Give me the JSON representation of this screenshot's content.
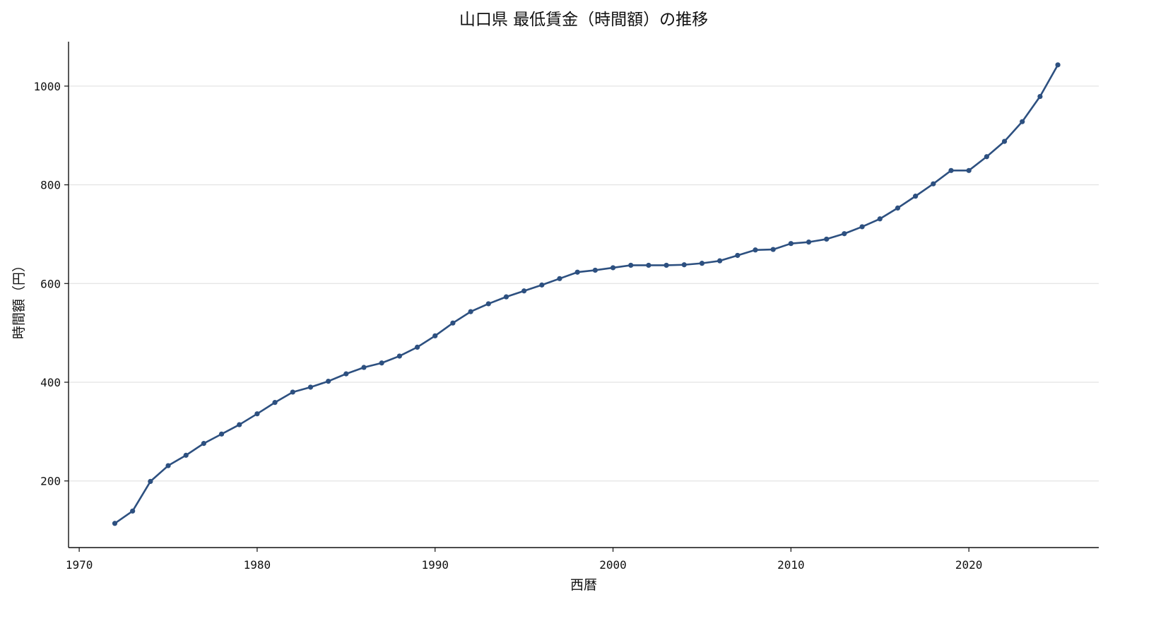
{
  "chart_data": {
    "type": "line",
    "title": "山口県 最低賃金（時間額）の推移",
    "xlabel": "西暦",
    "ylabel": "時間額（円）",
    "xlim": [
      1969.4,
      2027.3
    ],
    "ylim": [
      65,
      1090
    ],
    "xticks": [
      1970,
      1980,
      1990,
      2000,
      2010,
      2020
    ],
    "yticks": [
      200,
      400,
      600,
      800,
      1000
    ],
    "grid": "horizontal",
    "color": "#2d5080",
    "series": [
      {
        "x": [
          1972,
          1973,
          1974,
          1975,
          1976,
          1977,
          1978,
          1979,
          1980,
          1981,
          1982,
          1983,
          1984,
          1985,
          1986,
          1987,
          1988,
          1989,
          1990,
          1991,
          1992,
          1993,
          1994,
          1995,
          1996,
          1997,
          1998,
          1999,
          2000,
          2001,
          2002,
          2003,
          2004,
          2005,
          2006,
          2007,
          2008,
          2009,
          2010,
          2011,
          2012,
          2013,
          2014,
          2015,
          2016,
          2017,
          2018,
          2019,
          2020,
          2021,
          2022,
          2023,
          2024,
          2025
        ],
        "y": [
          114,
          139,
          199,
          231,
          252,
          276,
          295,
          314,
          336,
          359,
          380,
          390,
          402,
          417,
          430,
          439,
          453,
          471,
          494,
          520,
          543,
          559,
          573,
          585,
          597,
          610,
          623,
          627,
          632,
          637,
          637,
          637,
          638,
          641,
          646,
          657,
          668,
          669,
          681,
          684,
          690,
          701,
          715,
          731,
          753,
          777,
          802,
          829,
          829,
          857,
          888,
          928,
          979,
          1043
        ]
      }
    ]
  }
}
